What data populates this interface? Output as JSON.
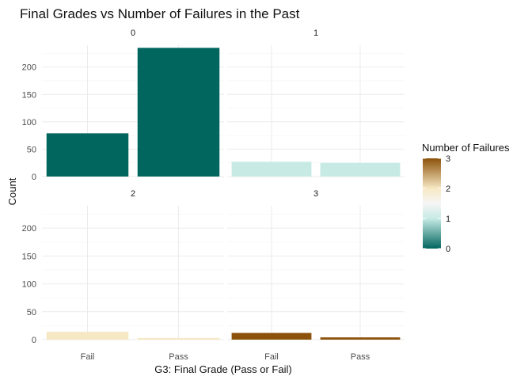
{
  "chart_data": {
    "type": "bar",
    "title": "Final Grades vs Number of Failures in the Past",
    "xlabel": "G3: Final Grade (Pass or Fail)",
    "ylabel": "Count",
    "categories": [
      "Fail",
      "Pass"
    ],
    "ylim": [
      0,
      240
    ],
    "yticks": [
      0,
      50,
      100,
      150,
      200
    ],
    "grid": true,
    "facet_layout": "2x2",
    "facets": [
      {
        "label": "0",
        "failures": 0,
        "values": [
          79,
          235
        ]
      },
      {
        "label": "1",
        "failures": 1,
        "values": [
          27,
          25
        ]
      },
      {
        "label": "2",
        "failures": 2,
        "values": [
          14,
          3
        ]
      },
      {
        "label": "3",
        "failures": 3,
        "values": [
          12,
          4
        ]
      }
    ],
    "legend": {
      "title": "Number of Failures",
      "position": "right",
      "ticks": [
        "0",
        "1",
        "2",
        "3"
      ],
      "colors": [
        "#01665e",
        "#c7eae5",
        "#f6e8c3",
        "#8c510a"
      ],
      "midpoint_color": "#f5f5f5"
    }
  }
}
